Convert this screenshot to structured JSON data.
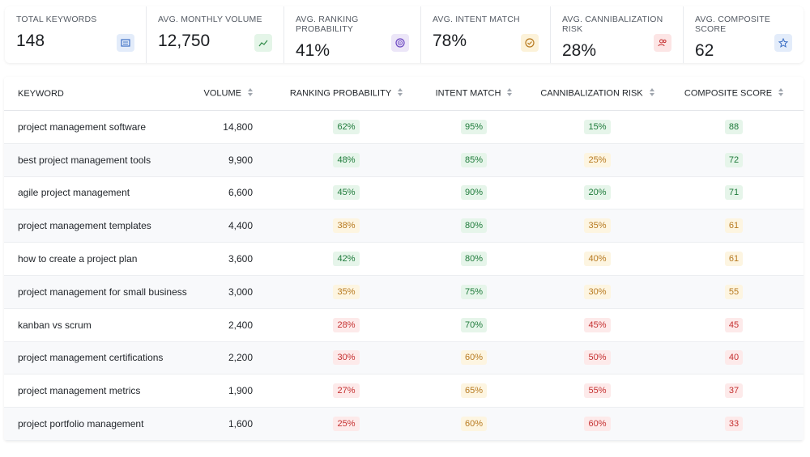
{
  "stats": [
    {
      "label": "TOTAL KEYWORDS",
      "value": "148"
    },
    {
      "label": "AVG. MONTHLY VOLUME",
      "value": "12,750"
    },
    {
      "label": "AVG. RANKING PROBABILITY",
      "value": "41%"
    },
    {
      "label": "AVG. INTENT MATCH",
      "value": "78%"
    },
    {
      "label": "AVG. CANNIBALIZATION RISK",
      "value": "28%"
    },
    {
      "label": "AVG. COMPOSITE SCORE",
      "value": "62"
    }
  ],
  "table": {
    "headers": [
      "KEYWORD",
      "VOLUME",
      "RANKING PROBABILITY",
      "INTENT MATCH",
      "CANNIBALIZATION RISK",
      "COMPOSITE SCORE"
    ],
    "rows": [
      [
        {
          "text": "project management software"
        },
        {
          "text": "14,800"
        },
        {
          "text": "62%",
          "tone": "green"
        },
        {
          "text": "95%",
          "tone": "green"
        },
        {
          "text": "15%",
          "tone": "green"
        },
        {
          "text": "88",
          "tone": "green"
        }
      ],
      [
        {
          "text": "best project management tools"
        },
        {
          "text": "9,900"
        },
        {
          "text": "48%",
          "tone": "green"
        },
        {
          "text": "85%",
          "tone": "green"
        },
        {
          "text": "25%",
          "tone": "yellow"
        },
        {
          "text": "72",
          "tone": "green"
        }
      ],
      [
        {
          "text": "agile project management"
        },
        {
          "text": "6,600"
        },
        {
          "text": "45%",
          "tone": "green"
        },
        {
          "text": "90%",
          "tone": "green"
        },
        {
          "text": "20%",
          "tone": "green"
        },
        {
          "text": "71",
          "tone": "green"
        }
      ],
      [
        {
          "text": "project management templates"
        },
        {
          "text": "4,400"
        },
        {
          "text": "38%",
          "tone": "yellow"
        },
        {
          "text": "80%",
          "tone": "green"
        },
        {
          "text": "35%",
          "tone": "yellow"
        },
        {
          "text": "61",
          "tone": "yellow"
        }
      ],
      [
        {
          "text": "how to create a project plan"
        },
        {
          "text": "3,600"
        },
        {
          "text": "42%",
          "tone": "green"
        },
        {
          "text": "80%",
          "tone": "green"
        },
        {
          "text": "40%",
          "tone": "yellow"
        },
        {
          "text": "61",
          "tone": "yellow"
        }
      ],
      [
        {
          "text": "project management for small business"
        },
        {
          "text": "3,000"
        },
        {
          "text": "35%",
          "tone": "yellow"
        },
        {
          "text": "75%",
          "tone": "green"
        },
        {
          "text": "30%",
          "tone": "yellow"
        },
        {
          "text": "55",
          "tone": "yellow"
        }
      ],
      [
        {
          "text": "kanban vs scrum"
        },
        {
          "text": "2,400"
        },
        {
          "text": "28%",
          "tone": "red"
        },
        {
          "text": "70%",
          "tone": "green"
        },
        {
          "text": "45%",
          "tone": "red"
        },
        {
          "text": "45",
          "tone": "red"
        }
      ],
      [
        {
          "text": "project management certifications"
        },
        {
          "text": "2,200"
        },
        {
          "text": "30%",
          "tone": "red"
        },
        {
          "text": "60%",
          "tone": "yellow"
        },
        {
          "text": "50%",
          "tone": "red"
        },
        {
          "text": "40",
          "tone": "red"
        }
      ],
      [
        {
          "text": "project management metrics"
        },
        {
          "text": "1,900"
        },
        {
          "text": "27%",
          "tone": "red"
        },
        {
          "text": "65%",
          "tone": "yellow"
        },
        {
          "text": "55%",
          "tone": "red"
        },
        {
          "text": "37",
          "tone": "red"
        }
      ],
      [
        {
          "text": "project portfolio management"
        },
        {
          "text": "1,600"
        },
        {
          "text": "25%",
          "tone": "red"
        },
        {
          "text": "60%",
          "tone": "yellow"
        },
        {
          "text": "60%",
          "tone": "red"
        },
        {
          "text": "33",
          "tone": "red"
        }
      ]
    ]
  }
}
